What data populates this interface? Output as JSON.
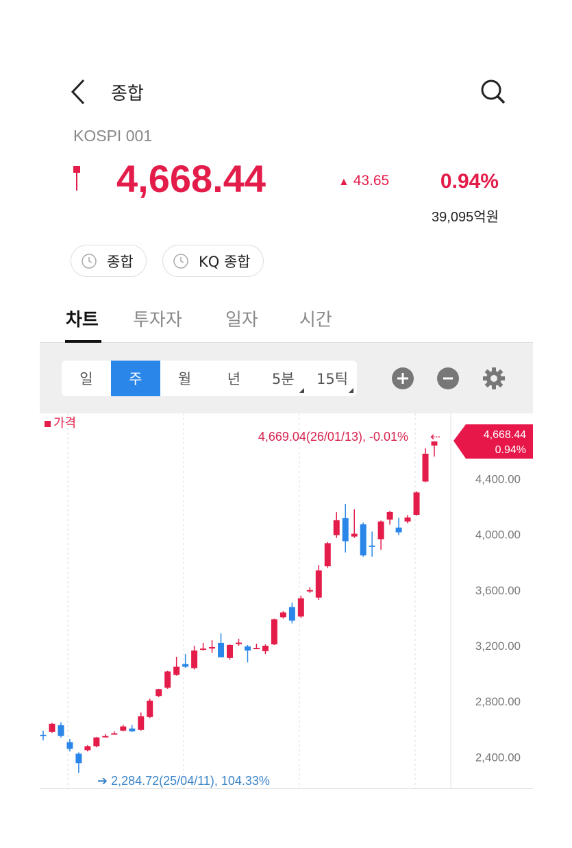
{
  "header": {
    "title": "종합",
    "back_icon": "chevron-left-icon",
    "search_icon": "search-icon"
  },
  "index": {
    "code": "KOSPI 001",
    "price": "4,668.44",
    "change": "43.65",
    "change_direction": "up",
    "change_pct": "0.94%",
    "volume": "39,095억원",
    "up_color": "#e31c4a",
    "down_color": "#2a86e8"
  },
  "pills": [
    {
      "label": "종합",
      "icon": "clock-icon"
    },
    {
      "label": "KQ 종합",
      "icon": "clock-icon"
    }
  ],
  "tabs": [
    {
      "label": "차트",
      "active": true
    },
    {
      "label": "투자자"
    },
    {
      "label": "일자"
    },
    {
      "label": "시간"
    }
  ],
  "periods": [
    {
      "label": "일"
    },
    {
      "label": "주",
      "active": true
    },
    {
      "label": "월"
    },
    {
      "label": "년"
    },
    {
      "label": "5분",
      "has_menu": true
    },
    {
      "label": "15틱",
      "has_menu": true
    }
  ],
  "tools": {
    "zoom_in": "plus-circle-icon",
    "zoom_out": "minus-circle-icon",
    "settings": "gear-icon"
  },
  "chart_data": {
    "type": "candlestick",
    "legend": "가격",
    "interval": "weekly",
    "axis_position": "right",
    "yticks": [
      "4,400.00",
      "4,000.00",
      "3,600.00",
      "3,200.00",
      "2,800.00",
      "2,400.00"
    ],
    "ylim": [
      2170,
      4870
    ],
    "current_tag": {
      "price": "4,668.44",
      "pct": "0.94%"
    },
    "high_annotation": "4,669.04(26/01/13), -0.01%",
    "low_annotation": "2,284.72(25/04/11), 104.33%",
    "candles": [
      [
        2560,
        2590,
        2520,
        2556
      ],
      [
        2580,
        2645,
        2575,
        2639
      ],
      [
        2629,
        2650,
        2540,
        2551
      ],
      [
        2507,
        2530,
        2440,
        2459
      ],
      [
        2424,
        2434,
        2284.72,
        2356
      ],
      [
        2449,
        2485,
        2440,
        2478
      ],
      [
        2478,
        2545,
        2470,
        2541
      ],
      [
        2545,
        2565,
        2540,
        2551
      ],
      [
        2568,
        2585,
        2565,
        2571
      ],
      [
        2590,
        2630,
        2585,
        2620
      ],
      [
        2605,
        2630,
        2580,
        2585
      ],
      [
        2595,
        2720,
        2590,
        2693
      ],
      [
        2688,
        2820,
        2680,
        2805
      ],
      [
        2839,
        2890,
        2830,
        2888
      ],
      [
        2898,
        3020,
        2890,
        3015
      ],
      [
        2990,
        3120,
        2985,
        3049
      ],
      [
        3068,
        3140,
        3040,
        3049
      ],
      [
        3039,
        3200,
        3030,
        3166
      ],
      [
        3175,
        3220,
        3165,
        3180
      ],
      [
        3185,
        3240,
        3150,
        3190
      ],
      [
        3220,
        3290,
        3117,
        3117
      ],
      [
        3112,
        3210,
        3100,
        3205
      ],
      [
        3215,
        3250,
        3200,
        3222
      ],
      [
        3195,
        3205,
        3080,
        3166
      ],
      [
        3185,
        3215,
        3175,
        3185
      ],
      [
        3161,
        3210,
        3140,
        3200
      ],
      [
        3210,
        3395,
        3205,
        3390
      ],
      [
        3405,
        3450,
        3395,
        3439
      ],
      [
        3478,
        3510,
        3360,
        3380
      ],
      [
        3410,
        3560,
        3400,
        3541
      ],
      [
        3590,
        3620,
        3580,
        3600
      ],
      [
        3546,
        3780,
        3530,
        3741
      ],
      [
        3771,
        3945,
        3760,
        3937
      ],
      [
        3995,
        4160,
        3975,
        4102
      ],
      [
        4117,
        4220,
        3870,
        3951
      ],
      [
        3985,
        4180,
        3975,
        4005
      ],
      [
        4073,
        4085,
        3840,
        3849
      ],
      [
        3920,
        4020,
        3840,
        3917
      ],
      [
        3966,
        4100,
        3890,
        4093
      ],
      [
        4107,
        4170,
        4070,
        4161
      ],
      [
        4049,
        4120,
        3995,
        4015
      ],
      [
        4093,
        4140,
        4080,
        4122
      ],
      [
        4141,
        4310,
        4135,
        4302
      ],
      [
        4380,
        4620,
        4375,
        4580
      ],
      [
        4639,
        4669.04,
        4560,
        4668.44
      ]
    ]
  }
}
